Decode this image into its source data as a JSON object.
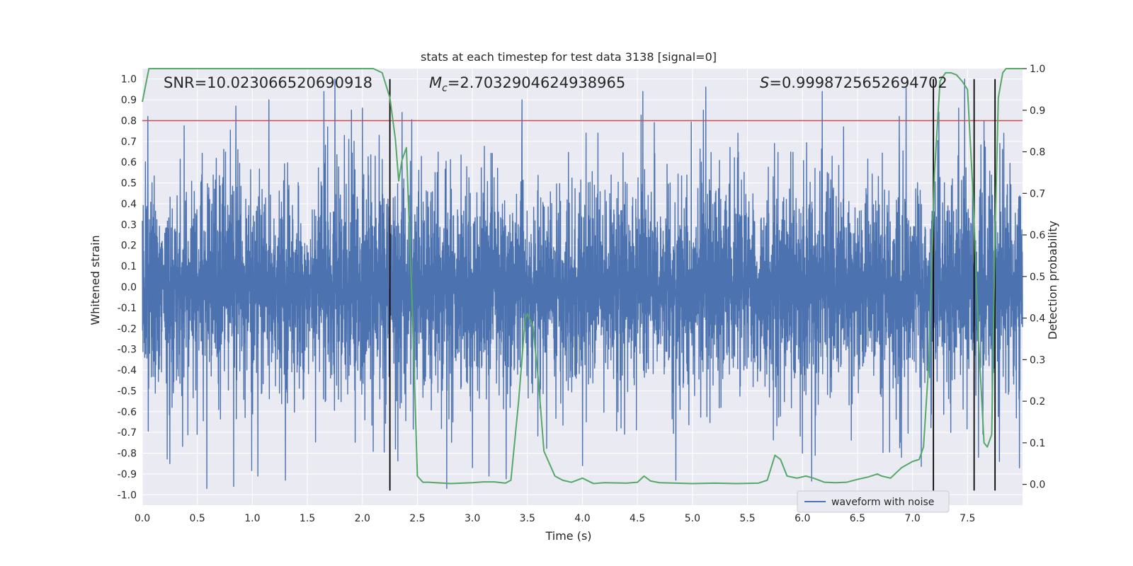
{
  "chart_data": {
    "type": "line",
    "title": "stats at each timestep for test data 3138 [signal=0]",
    "xlabel": "Time (s)",
    "ylabel_left": "Whitened strain",
    "ylabel_right": "Detection probability",
    "xlim": [
      0.0,
      8.0
    ],
    "ylim_left": [
      -1.05,
      1.05
    ],
    "ylim_right": [
      -0.05,
      1.0
    ],
    "x_ticks": [
      "0.0",
      "0.5",
      "1.0",
      "1.5",
      "2.0",
      "2.5",
      "3.0",
      "3.5",
      "4.0",
      "4.5",
      "5.0",
      "5.5",
      "6.0",
      "6.5",
      "7.0",
      "7.5"
    ],
    "y_ticks_left": [
      "-1.0",
      "-0.9",
      "-0.8",
      "-0.7",
      "-0.6",
      "-0.5",
      "-0.4",
      "-0.3",
      "-0.2",
      "-0.1",
      "0.0",
      "0.1",
      "0.2",
      "0.3",
      "0.4",
      "0.5",
      "0.6",
      "0.7",
      "0.8",
      "0.9",
      "1.0"
    ],
    "y_ticks_right": [
      "0.0",
      "0.1",
      "0.2",
      "0.3",
      "0.4",
      "0.5",
      "0.6",
      "0.7",
      "0.8",
      "0.9",
      "1.0"
    ],
    "annotations": {
      "snr": "SNR=10.023066520690918",
      "mc_symbol": "M",
      "mc_sub": "c",
      "mc_value": "=2.7032904624938965",
      "s_symbol": "S",
      "s_value": "=0.9998725652694702"
    },
    "threshold": {
      "y": 0.8,
      "color": "#c44e52"
    },
    "detection_lines_x": [
      2.25,
      7.19,
      7.56,
      7.75
    ],
    "waveform": {
      "name": "waveform with noise",
      "color": "#4c72b0",
      "typical_amplitude": 0.28,
      "sample_count": 4000,
      "peaks_pos": [
        [
          0.05,
          0.82
        ],
        [
          0.85,
          0.87
        ],
        [
          1.15,
          0.9
        ],
        [
          1.65,
          0.94
        ],
        [
          1.75,
          1.0
        ],
        [
          1.9,
          0.85
        ],
        [
          2.0,
          0.86
        ],
        [
          3.45,
          0.9
        ],
        [
          4.55,
          0.94
        ],
        [
          5.1,
          0.85
        ],
        [
          6.18,
          0.94
        ],
        [
          6.88,
          0.82
        ],
        [
          7.24,
          0.84
        ],
        [
          7.42,
          0.86
        ],
        [
          7.65,
          0.8
        ]
      ],
      "peaks_neg": [
        [
          0.25,
          -0.85
        ],
        [
          0.83,
          -0.96
        ],
        [
          1.05,
          -0.91
        ],
        [
          1.3,
          -0.93
        ],
        [
          2.3,
          -0.78
        ],
        [
          3.0,
          -0.87
        ],
        [
          3.15,
          -0.91
        ],
        [
          4.0,
          -0.86
        ],
        [
          4.85,
          -0.93
        ],
        [
          6.0,
          -0.8
        ],
        [
          6.9,
          -0.82
        ],
        [
          7.6,
          -0.82
        ],
        [
          7.79,
          -0.84
        ]
      ]
    },
    "probability": {
      "color": "#55a868",
      "x": [
        0.0,
        0.06,
        0.15,
        0.5,
        1.0,
        1.5,
        2.0,
        2.1,
        2.18,
        2.25,
        2.3,
        2.33,
        2.36,
        2.4,
        2.45,
        2.5,
        2.55,
        2.6,
        2.8,
        3.0,
        3.1,
        3.2,
        3.3,
        3.35,
        3.42,
        3.48,
        3.5,
        3.55,
        3.6,
        3.65,
        3.75,
        3.82,
        3.9,
        4.0,
        4.1,
        4.2,
        4.4,
        4.5,
        4.56,
        4.62,
        4.7,
        5.0,
        5.2,
        5.4,
        5.6,
        5.68,
        5.75,
        5.8,
        5.86,
        5.95,
        6.03,
        6.1,
        6.2,
        6.3,
        6.4,
        6.5,
        6.6,
        6.68,
        6.72,
        6.8,
        6.9,
        7.0,
        7.06,
        7.1,
        7.15,
        7.2,
        7.25,
        7.3,
        7.35,
        7.4,
        7.45,
        7.5,
        7.55,
        7.6,
        7.65,
        7.68,
        7.72,
        7.75,
        7.78,
        7.82,
        7.85,
        7.9,
        7.95,
        8.0
      ],
      "y": [
        0.92,
        1.0,
        1.0,
        1.0,
        1.0,
        1.0,
        1.0,
        1.0,
        0.99,
        0.93,
        0.83,
        0.73,
        0.78,
        0.81,
        0.45,
        0.02,
        0.005,
        0.005,
        0.002,
        0.004,
        0.006,
        0.006,
        0.003,
        0.01,
        0.2,
        0.4,
        0.41,
        0.38,
        0.25,
        0.08,
        0.02,
        0.01,
        0.005,
        0.015,
        0.002,
        0.004,
        0.003,
        0.005,
        0.02,
        0.008,
        0.004,
        0.002,
        0.003,
        0.002,
        0.003,
        0.01,
        0.07,
        0.06,
        0.02,
        0.015,
        0.02,
        0.015,
        0.005,
        0.004,
        0.005,
        0.012,
        0.018,
        0.025,
        0.02,
        0.015,
        0.04,
        0.055,
        0.06,
        0.09,
        0.3,
        0.75,
        0.97,
        0.99,
        0.99,
        0.985,
        0.97,
        0.95,
        0.7,
        0.35,
        0.1,
        0.09,
        0.12,
        0.6,
        0.93,
        0.99,
        1.0,
        1.0,
        1.0,
        1.0
      ]
    }
  }
}
